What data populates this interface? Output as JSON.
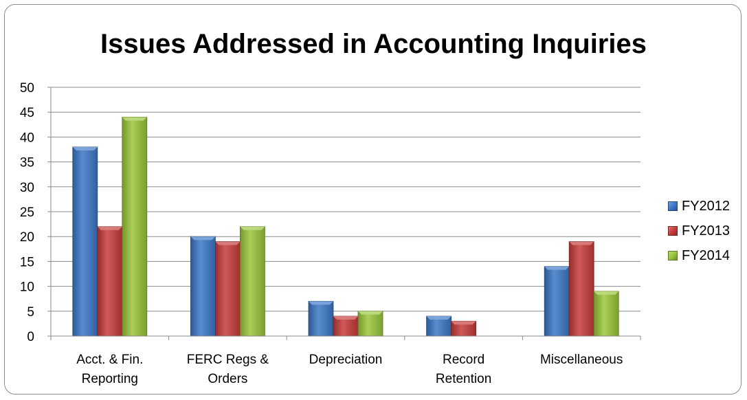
{
  "chart_data": {
    "type": "bar",
    "title": "Issues Addressed in Accounting Inquiries",
    "xlabel": "",
    "ylabel": "",
    "ylim": [
      0,
      50
    ],
    "yticks": [
      "0",
      "5",
      "10",
      "15",
      "20",
      "25",
      "30",
      "35",
      "40",
      "45",
      "50"
    ],
    "categories": [
      [
        "Acct. & Fin.",
        "Reporting"
      ],
      [
        "FERC Regs &",
        "Orders"
      ],
      [
        "Depreciation"
      ],
      [
        "Record",
        "Retention"
      ],
      [
        "Miscellaneous"
      ]
    ],
    "series": [
      {
        "name": "FY2012",
        "color": "#3c78c8",
        "values": [
          38,
          20,
          7,
          4,
          14
        ]
      },
      {
        "name": "FY2013",
        "color": "#c83c3a",
        "values": [
          22,
          19,
          4,
          3,
          19
        ]
      },
      {
        "name": "FY2014",
        "color": "#9ac83a",
        "values": [
          44,
          22,
          5,
          0,
          9
        ]
      }
    ],
    "grid": true,
    "legend_position": "right"
  }
}
